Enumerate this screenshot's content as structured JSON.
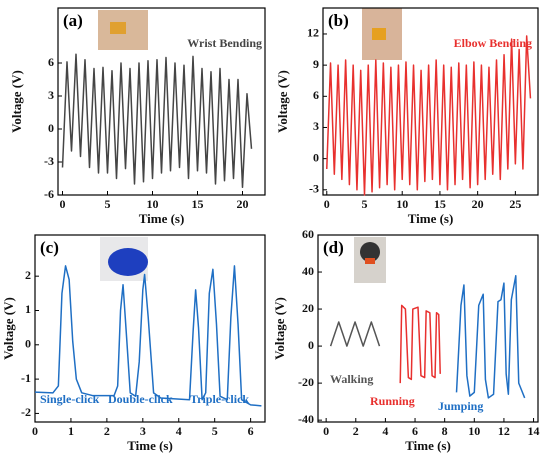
{
  "chart_data": [
    {
      "type": "line",
      "panel_label": "(a)",
      "x_label": "Time (s)",
      "y_label": "Voltage (V)",
      "xlim": [
        -0.5,
        22.5
      ],
      "ylim": [
        -6,
        11
      ],
      "xticks": [
        0,
        5,
        10,
        15,
        20
      ],
      "yticks": [
        -6,
        -3,
        0,
        3,
        6
      ],
      "series": [
        {
          "name": "Wrist Bending",
          "color": "#454545",
          "x": [
            0,
            0.5,
            1,
            1.5,
            2,
            2.5,
            3,
            3.5,
            4,
            4.5,
            5,
            5.5,
            6,
            6.5,
            7,
            7.5,
            8,
            8.5,
            9,
            9.5,
            10,
            10.5,
            11,
            11.5,
            12,
            12.5,
            13,
            13.5,
            14,
            14.5,
            15,
            15.5,
            16,
            16.5,
            17,
            17.5,
            18,
            18.5,
            19,
            19.5,
            20,
            20.5,
            21
          ],
          "values": [
            -3.5,
            6.1,
            -2.0,
            6.8,
            -2.5,
            6.3,
            -3.5,
            5.5,
            -4.0,
            5.6,
            -4.0,
            5.3,
            -4.5,
            6.0,
            -3.6,
            5.5,
            -5.0,
            6.0,
            -4.8,
            6.2,
            -4.5,
            6.3,
            -4.0,
            6.5,
            -3.8,
            6.0,
            -3.5,
            5.8,
            -4.5,
            6.6,
            -3.8,
            5.5,
            -4.0,
            5.2,
            -5.0,
            5.5,
            -4.7,
            4.5,
            -4.5,
            4.5,
            -5.3,
            3.2,
            -1.8
          ]
        }
      ]
    },
    {
      "type": "line",
      "panel_label": "(b)",
      "x_label": "Time (s)",
      "y_label": "Voltage (V)",
      "xlim": [
        -0.5,
        28
      ],
      "ylim": [
        -3.5,
        14.5
      ],
      "xticks": [
        0,
        5,
        10,
        15,
        20,
        25
      ],
      "yticks": [
        -3,
        0,
        3,
        6,
        9,
        12
      ],
      "series": [
        {
          "name": "Elbow Bending",
          "color": "#e8302e",
          "x": [
            0,
            0.5,
            1,
            1.5,
            2,
            2.5,
            3,
            3.5,
            4,
            4.5,
            5,
            5.5,
            6,
            6.5,
            7,
            7.5,
            8,
            8.5,
            9,
            9.5,
            10,
            10.5,
            11,
            11.5,
            12,
            12.5,
            13,
            13.5,
            14,
            14.5,
            15,
            15.5,
            16,
            16.5,
            17,
            17.5,
            18,
            18.5,
            19,
            19.5,
            20,
            20.5,
            21,
            21.5,
            22,
            22.5,
            23,
            23.5,
            24,
            24.5,
            25,
            25.5,
            26,
            26.5,
            27
          ],
          "values": [
            -1.0,
            9.2,
            -1.5,
            9.0,
            -2.0,
            9.5,
            -2.5,
            9.0,
            -3.0,
            8.5,
            -3.5,
            9.0,
            -3.2,
            9.5,
            -2.8,
            9.2,
            -2.5,
            8.8,
            -3.0,
            9.0,
            -2.0,
            9.3,
            -2.5,
            9.0,
            -3.0,
            8.5,
            -2.2,
            9.0,
            -2.0,
            9.5,
            -2.5,
            9.0,
            -3.0,
            8.8,
            -2.5,
            9.2,
            -2.0,
            9.0,
            -2.8,
            9.3,
            -2.5,
            9.0,
            -2.0,
            8.8,
            -1.5,
            9.5,
            -2.0,
            10.0,
            -1.0,
            11.5,
            -0.5,
            10.5,
            -1.0,
            11.8,
            5.8
          ]
        }
      ]
    },
    {
      "type": "line",
      "panel_label": "(c)",
      "x_label": "Time (s)",
      "y_label": "Voltage (V)",
      "xlim": [
        0,
        6.4
      ],
      "ylim": [
        -2.25,
        3.2
      ],
      "xticks": [
        0,
        1,
        2,
        3,
        4,
        5,
        6
      ],
      "yticks": [
        -2,
        -1,
        0,
        1,
        2
      ],
      "annotations": [
        "Single-click",
        "Double-click",
        "Triple-click"
      ],
      "annotation_color": "#1f6fc4",
      "series": [
        {
          "color": "#1f6fc4",
          "x": [
            0,
            0.5,
            0.65,
            0.75,
            0.85,
            0.95,
            1.05,
            1.15,
            1.3,
            1.6,
            2.2,
            2.3,
            2.38,
            2.45,
            2.55,
            2.65,
            2.8,
            2.9,
            3.0,
            3.05,
            3.15,
            3.3,
            3.5,
            4.3,
            4.4,
            4.47,
            4.55,
            4.65,
            4.75,
            4.85,
            4.95,
            5.05,
            5.15,
            5.35,
            5.45,
            5.55,
            5.65,
            5.75,
            6.0,
            6.3
          ],
          "values": [
            -1.38,
            -1.4,
            -1.2,
            1.5,
            2.3,
            1.9,
            0.1,
            -1.0,
            -1.4,
            -1.48,
            -1.48,
            -1.2,
            1.0,
            1.75,
            0.2,
            -1.4,
            -1.5,
            -0.5,
            1.6,
            2.05,
            0.8,
            -1.4,
            -1.55,
            -1.6,
            0.4,
            1.6,
            0.5,
            -1.6,
            -1.4,
            1.5,
            2.2,
            0.6,
            -1.5,
            -1.6,
            0.8,
            2.3,
            0.6,
            -1.6,
            -1.75,
            -1.78
          ]
        }
      ]
    },
    {
      "type": "line",
      "panel_label": "(d)",
      "x_label": "Time (s)",
      "y_label": "Voltage (V)",
      "xlim": [
        -0.55,
        14.3
      ],
      "ylim": [
        -41,
        60
      ],
      "xticks": [
        0,
        2,
        4,
        6,
        8,
        10,
        12,
        14
      ],
      "yticks": [
        -40,
        -20,
        0,
        20,
        40,
        60
      ],
      "series": [
        {
          "name": "Walking",
          "color": "#555555",
          "x": [
            0.3,
            0.575,
            0.85,
            1.125,
            1.4,
            1.675,
            1.95,
            2.225,
            2.5,
            2.775,
            3.05,
            3.325,
            3.6
          ],
          "values": [
            0,
            6.5,
            13,
            6.5,
            0,
            6.5,
            13,
            6.5,
            0,
            6.5,
            13,
            6.5,
            0
          ]
        },
        {
          "name": "Running",
          "color": "#e8302e",
          "x": [
            5.0,
            5.1,
            5.35,
            5.55,
            5.75,
            5.85,
            6.2,
            6.4,
            6.65,
            6.75,
            7.0,
            7.15,
            7.35,
            7.45,
            7.6,
            7.7
          ],
          "values": [
            -20,
            22,
            20,
            -17,
            -18,
            20,
            21,
            -16,
            -17,
            19,
            18,
            -16,
            -17,
            18,
            17,
            -15
          ]
        },
        {
          "name": "Jumping",
          "color": "#1f6fc4",
          "x": [
            8.8,
            9.1,
            9.3,
            9.5,
            9.7,
            10.0,
            10.3,
            10.6,
            10.75,
            10.95,
            11.3,
            11.6,
            11.8,
            12.0,
            12.15,
            12.3,
            12.5,
            12.8,
            13.0,
            13.2,
            13.4
          ],
          "values": [
            -25,
            22,
            33,
            -16,
            -27,
            -25,
            22,
            28,
            -18,
            -28,
            -26,
            24,
            25,
            34,
            -15,
            -26,
            25,
            38,
            -20,
            -24,
            -28
          ]
        }
      ]
    }
  ]
}
